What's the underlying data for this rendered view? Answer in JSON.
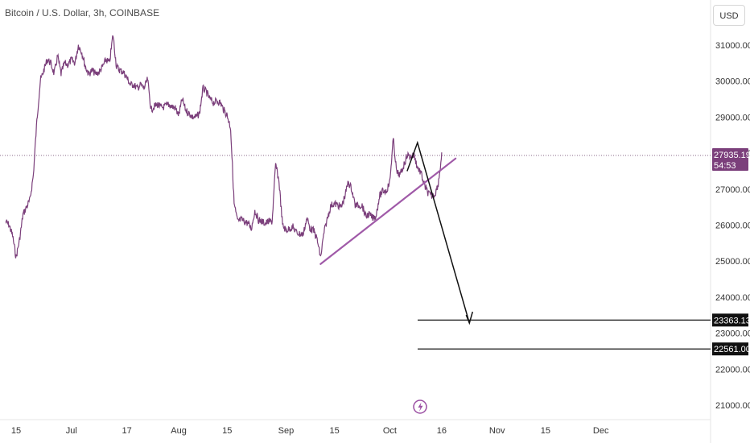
{
  "header": {
    "title": "Bitcoin / U.S. Dollar, 3h, COINBASE"
  },
  "scale_button": {
    "label": "USD"
  },
  "price_tag": {
    "price": "27935.19",
    "countdown": "54:53",
    "color": "#7b3f7b"
  },
  "level_tags": [
    {
      "label": "23363.13",
      "value": 23363.13
    },
    {
      "label": "22561.00",
      "value": 22561.0
    }
  ],
  "chart_data": {
    "type": "line",
    "title": "Bitcoin / U.S. Dollar, 3h, COINBASE",
    "xlabel": "",
    "ylabel": "",
    "ylim": [
      20600,
      32200
    ],
    "y_ticks": [
      21000,
      22000,
      23000,
      24000,
      25000,
      26000,
      27000,
      28000,
      29000,
      30000,
      31000
    ],
    "y_tick_labels": [
      "21000.00",
      "22000.00",
      "23000.00",
      "24000.00",
      "25000.00",
      "26000.00",
      "27000.00",
      "28000.00",
      "29000.00",
      "30000.00",
      "31000.00"
    ],
    "x_ticks": [
      {
        "label": "15",
        "date": "2023-06-15"
      },
      {
        "label": "Jul",
        "date": "2023-07-01"
      },
      {
        "label": "17",
        "date": "2023-07-17"
      },
      {
        "label": "Aug",
        "date": "2023-08-01"
      },
      {
        "label": "15",
        "date": "2023-08-15"
      },
      {
        "label": "Sep",
        "date": "2023-09-01"
      },
      {
        "label": "15",
        "date": "2023-09-15"
      },
      {
        "label": "Oct",
        "date": "2023-10-01"
      },
      {
        "label": "16",
        "date": "2023-10-16"
      },
      {
        "label": "Nov",
        "date": "2023-11-01"
      },
      {
        "label": "15",
        "date": "2023-11-15"
      },
      {
        "label": "Dec",
        "date": "2023-12-01"
      }
    ],
    "series": [
      {
        "color": "#7b3f7b",
        "points": [
          [
            "2023-06-12",
            26100
          ],
          [
            "2023-06-13",
            26000
          ],
          [
            "2023-06-14",
            25700
          ],
          [
            "2023-06-15",
            25100
          ],
          [
            "2023-06-16",
            25600
          ],
          [
            "2023-06-17",
            26300
          ],
          [
            "2023-06-18",
            26500
          ],
          [
            "2023-06-19",
            26700
          ],
          [
            "2023-06-20",
            27400
          ],
          [
            "2023-06-21",
            28900
          ],
          [
            "2023-06-22",
            30000
          ],
          [
            "2023-06-23",
            30300
          ],
          [
            "2023-06-24",
            30600
          ],
          [
            "2023-06-25",
            30500
          ],
          [
            "2023-06-26",
            30200
          ],
          [
            "2023-06-27",
            30700
          ],
          [
            "2023-06-28",
            30200
          ],
          [
            "2023-06-29",
            30500
          ],
          [
            "2023-06-30",
            30450
          ],
          [
            "2023-07-01",
            30600
          ],
          [
            "2023-07-02",
            30500
          ],
          [
            "2023-07-03",
            31000
          ],
          [
            "2023-07-04",
            30800
          ],
          [
            "2023-07-05",
            30400
          ],
          [
            "2023-07-06",
            30200
          ],
          [
            "2023-07-07",
            30300
          ],
          [
            "2023-07-08",
            30200
          ],
          [
            "2023-07-09",
            30250
          ],
          [
            "2023-07-10",
            30400
          ],
          [
            "2023-07-11",
            30600
          ],
          [
            "2023-07-12",
            30500
          ],
          [
            "2023-07-13",
            31300
          ],
          [
            "2023-07-14",
            30400
          ],
          [
            "2023-07-15",
            30300
          ],
          [
            "2023-07-16",
            30250
          ],
          [
            "2023-07-17",
            30100
          ],
          [
            "2023-07-18",
            29900
          ],
          [
            "2023-07-19",
            29900
          ],
          [
            "2023-07-20",
            29800
          ],
          [
            "2023-07-21",
            29900
          ],
          [
            "2023-07-22",
            29800
          ],
          [
            "2023-07-23",
            30050
          ],
          [
            "2023-07-24",
            29200
          ],
          [
            "2023-07-25",
            29300
          ],
          [
            "2023-07-26",
            29350
          ],
          [
            "2023-07-27",
            29250
          ],
          [
            "2023-07-28",
            29300
          ],
          [
            "2023-07-29",
            29350
          ],
          [
            "2023-07-30",
            29300
          ],
          [
            "2023-07-31",
            29250
          ],
          [
            "2023-08-01",
            29050
          ],
          [
            "2023-08-02",
            29500
          ],
          [
            "2023-08-03",
            29200
          ],
          [
            "2023-08-04",
            29100
          ],
          [
            "2023-08-05",
            29000
          ],
          [
            "2023-08-06",
            29000
          ],
          [
            "2023-08-07",
            29100
          ],
          [
            "2023-08-08",
            29800
          ],
          [
            "2023-08-09",
            29700
          ],
          [
            "2023-08-10",
            29500
          ],
          [
            "2023-08-11",
            29400
          ],
          [
            "2023-08-12",
            29450
          ],
          [
            "2023-08-13",
            29400
          ],
          [
            "2023-08-14",
            29200
          ],
          [
            "2023-08-15",
            29050
          ],
          [
            "2023-08-16",
            28700
          ],
          [
            "2023-08-17",
            26600
          ],
          [
            "2023-08-18",
            26100
          ],
          [
            "2023-08-19",
            26150
          ],
          [
            "2023-08-20",
            26100
          ],
          [
            "2023-08-21",
            26050
          ],
          [
            "2023-08-22",
            25900
          ],
          [
            "2023-08-23",
            26400
          ],
          [
            "2023-08-24",
            26150
          ],
          [
            "2023-08-25",
            26100
          ],
          [
            "2023-08-26",
            26050
          ],
          [
            "2023-08-27",
            26100
          ],
          [
            "2023-08-28",
            26100
          ],
          [
            "2023-08-29",
            27700
          ],
          [
            "2023-08-30",
            27200
          ],
          [
            "2023-08-31",
            26000
          ],
          [
            "2023-09-01",
            25850
          ],
          [
            "2023-09-02",
            25900
          ],
          [
            "2023-09-03",
            25950
          ],
          [
            "2023-09-04",
            25800
          ],
          [
            "2023-09-05",
            25750
          ],
          [
            "2023-09-06",
            25750
          ],
          [
            "2023-09-07",
            26200
          ],
          [
            "2023-09-08",
            25900
          ],
          [
            "2023-09-09",
            25850
          ],
          [
            "2023-09-10",
            25600
          ],
          [
            "2023-09-11",
            25100
          ],
          [
            "2023-09-12",
            25800
          ],
          [
            "2023-09-13",
            26200
          ],
          [
            "2023-09-14",
            26550
          ],
          [
            "2023-09-15",
            26600
          ],
          [
            "2023-09-16",
            26550
          ],
          [
            "2023-09-17",
            26500
          ],
          [
            "2023-09-18",
            26800
          ],
          [
            "2023-09-19",
            27200
          ],
          [
            "2023-09-20",
            27000
          ],
          [
            "2023-09-21",
            26550
          ],
          [
            "2023-09-22",
            26550
          ],
          [
            "2023-09-23",
            26550
          ],
          [
            "2023-09-24",
            26250
          ],
          [
            "2023-09-25",
            26300
          ],
          [
            "2023-09-26",
            26200
          ],
          [
            "2023-09-27",
            26250
          ],
          [
            "2023-09-28",
            26800
          ],
          [
            "2023-09-29",
            26950
          ],
          [
            "2023-09-30",
            26950
          ],
          [
            "2023-10-01",
            27200
          ],
          [
            "2023-10-02",
            28400
          ],
          [
            "2023-10-03",
            27450
          ],
          [
            "2023-10-04",
            27400
          ],
          [
            "2023-10-05",
            27650
          ],
          [
            "2023-10-06",
            27950
          ],
          [
            "2023-10-07",
            27900
          ],
          [
            "2023-10-08",
            27950
          ],
          [
            "2023-10-09",
            27600
          ],
          [
            "2023-10-10",
            27450
          ],
          [
            "2023-10-11",
            27100
          ],
          [
            "2023-10-12",
            26900
          ],
          [
            "2023-10-13",
            26800
          ],
          [
            "2023-10-14",
            26850
          ],
          [
            "2023-10-15",
            27150
          ],
          [
            "2023-10-16",
            27935
          ]
        ]
      }
    ],
    "horizontal_levels": [
      23363.13,
      22561.0
    ],
    "last_price": 27935.19,
    "grid": false,
    "legend": "none"
  }
}
